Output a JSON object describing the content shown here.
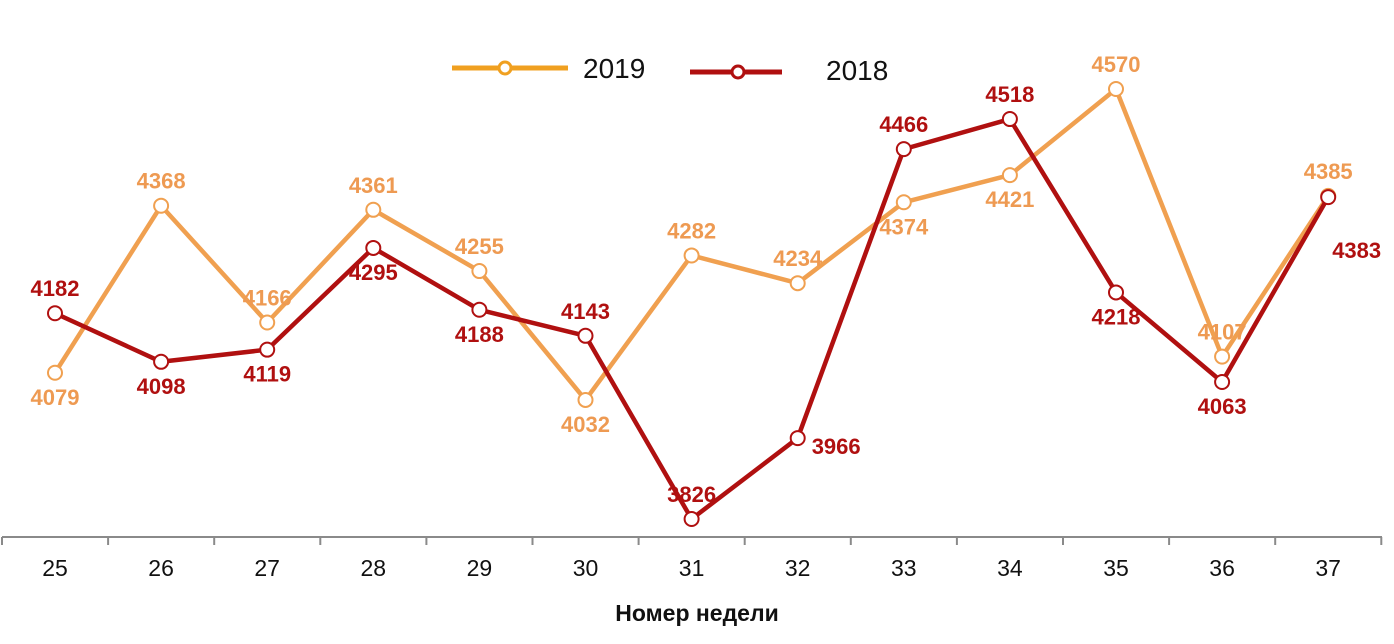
{
  "chart_data": {
    "type": "line",
    "title": "",
    "xlabel": "Номер недели",
    "ylabel": "",
    "categories": [
      "25",
      "26",
      "27",
      "28",
      "29",
      "30",
      "31",
      "32",
      "33",
      "34",
      "35",
      "36",
      "37"
    ],
    "series": [
      {
        "name": "2019",
        "color": "#f0a050",
        "legend_color": "#f0a020",
        "values": [
          4079,
          4368,
          4166,
          4361,
          4255,
          4032,
          4282,
          4234,
          4374,
          4421,
          4570,
          4107,
          4385
        ],
        "label_pos": [
          "below",
          "above",
          "above",
          "above",
          "above",
          "below",
          "above",
          "above",
          "below",
          "below",
          "above",
          "above",
          "above"
        ]
      },
      {
        "name": "2018",
        "color": "#b01010",
        "legend_color": "#b01010",
        "values": [
          4182,
          4098,
          4119,
          4295,
          4188,
          4143,
          3826,
          3966,
          4466,
          4518,
          4218,
          4063,
          4383
        ],
        "label_pos": [
          "above",
          "below",
          "below",
          "below",
          "below",
          "above",
          "above",
          "right",
          "above",
          "above",
          "below",
          "below",
          "below-right"
        ]
      }
    ],
    "legend_position": "top-center",
    "grid": false,
    "ylim": [
      3826,
      4570
    ]
  },
  "legend": {
    "items": [
      {
        "label": "2019"
      },
      {
        "label": "2018"
      }
    ]
  }
}
